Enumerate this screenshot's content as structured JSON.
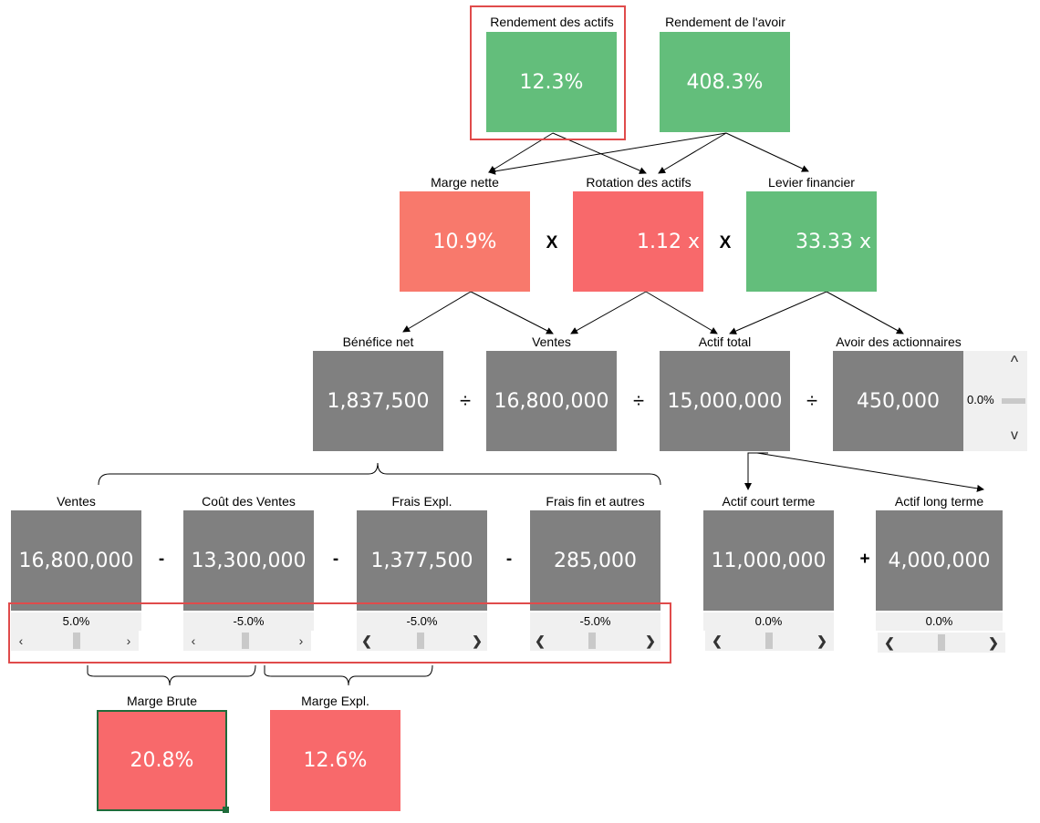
{
  "kpis": {
    "roa": {
      "label": "Rendement des actifs",
      "value": "12.3%"
    },
    "roe": {
      "label": "Rendement de l'avoir",
      "value": "408.3%"
    }
  },
  "ratios": {
    "net_margin": {
      "label": "Marge nette",
      "value": "10.9%"
    },
    "asset_turnover": {
      "label": "Rotation des actifs",
      "value": "1.12 x"
    },
    "leverage": {
      "label": "Levier financier",
      "value": "33.33 x"
    },
    "op_x": "X"
  },
  "components": {
    "net_income": {
      "label": "Bénéfice net",
      "value": "1,837,500"
    },
    "sales": {
      "label": "Ventes",
      "value": "16,800,000"
    },
    "total_assets": {
      "label": "Actif total",
      "value": "15,000,000"
    },
    "equity": {
      "label": "Avoir des actionnaires",
      "value": "450,000",
      "adjust": "0.0%"
    },
    "op_div": "÷"
  },
  "breakdown": {
    "sales": {
      "label": "Ventes",
      "value": "16,800,000",
      "adjust": "5.0%"
    },
    "cogs": {
      "label": "Coût des Ventes",
      "value": "13,300,000",
      "adjust": "-5.0%"
    },
    "opex": {
      "label": "Frais Expl.",
      "value": "1,377,500",
      "adjust": "-5.0%"
    },
    "fin": {
      "label": "Frais fin et autres",
      "value": "285,000",
      "adjust": "-5.0%"
    },
    "op_minus": "-"
  },
  "assets": {
    "current": {
      "label": "Actif court terme",
      "value": "11,000,000",
      "adjust": "0.0%"
    },
    "longterm": {
      "label": "Actif long terme",
      "value": "4,000,000",
      "adjust": "0.0%"
    },
    "op_plus": "+"
  },
  "margins": {
    "gross": {
      "label": "Marge Brute",
      "value": "20.8%"
    },
    "operating": {
      "label": "Marge Expl.",
      "value": "12.6%"
    }
  },
  "scroll_glyphs": {
    "left": "‹",
    "right": "›",
    "left_bold": "❮",
    "right_bold": "❯",
    "up": "^",
    "down": "v"
  },
  "colors": {
    "green": "#63be7b",
    "salmon": "#f8796c",
    "red": "#f8696b",
    "gray": "#808080",
    "highlight": "#e04b4b"
  }
}
